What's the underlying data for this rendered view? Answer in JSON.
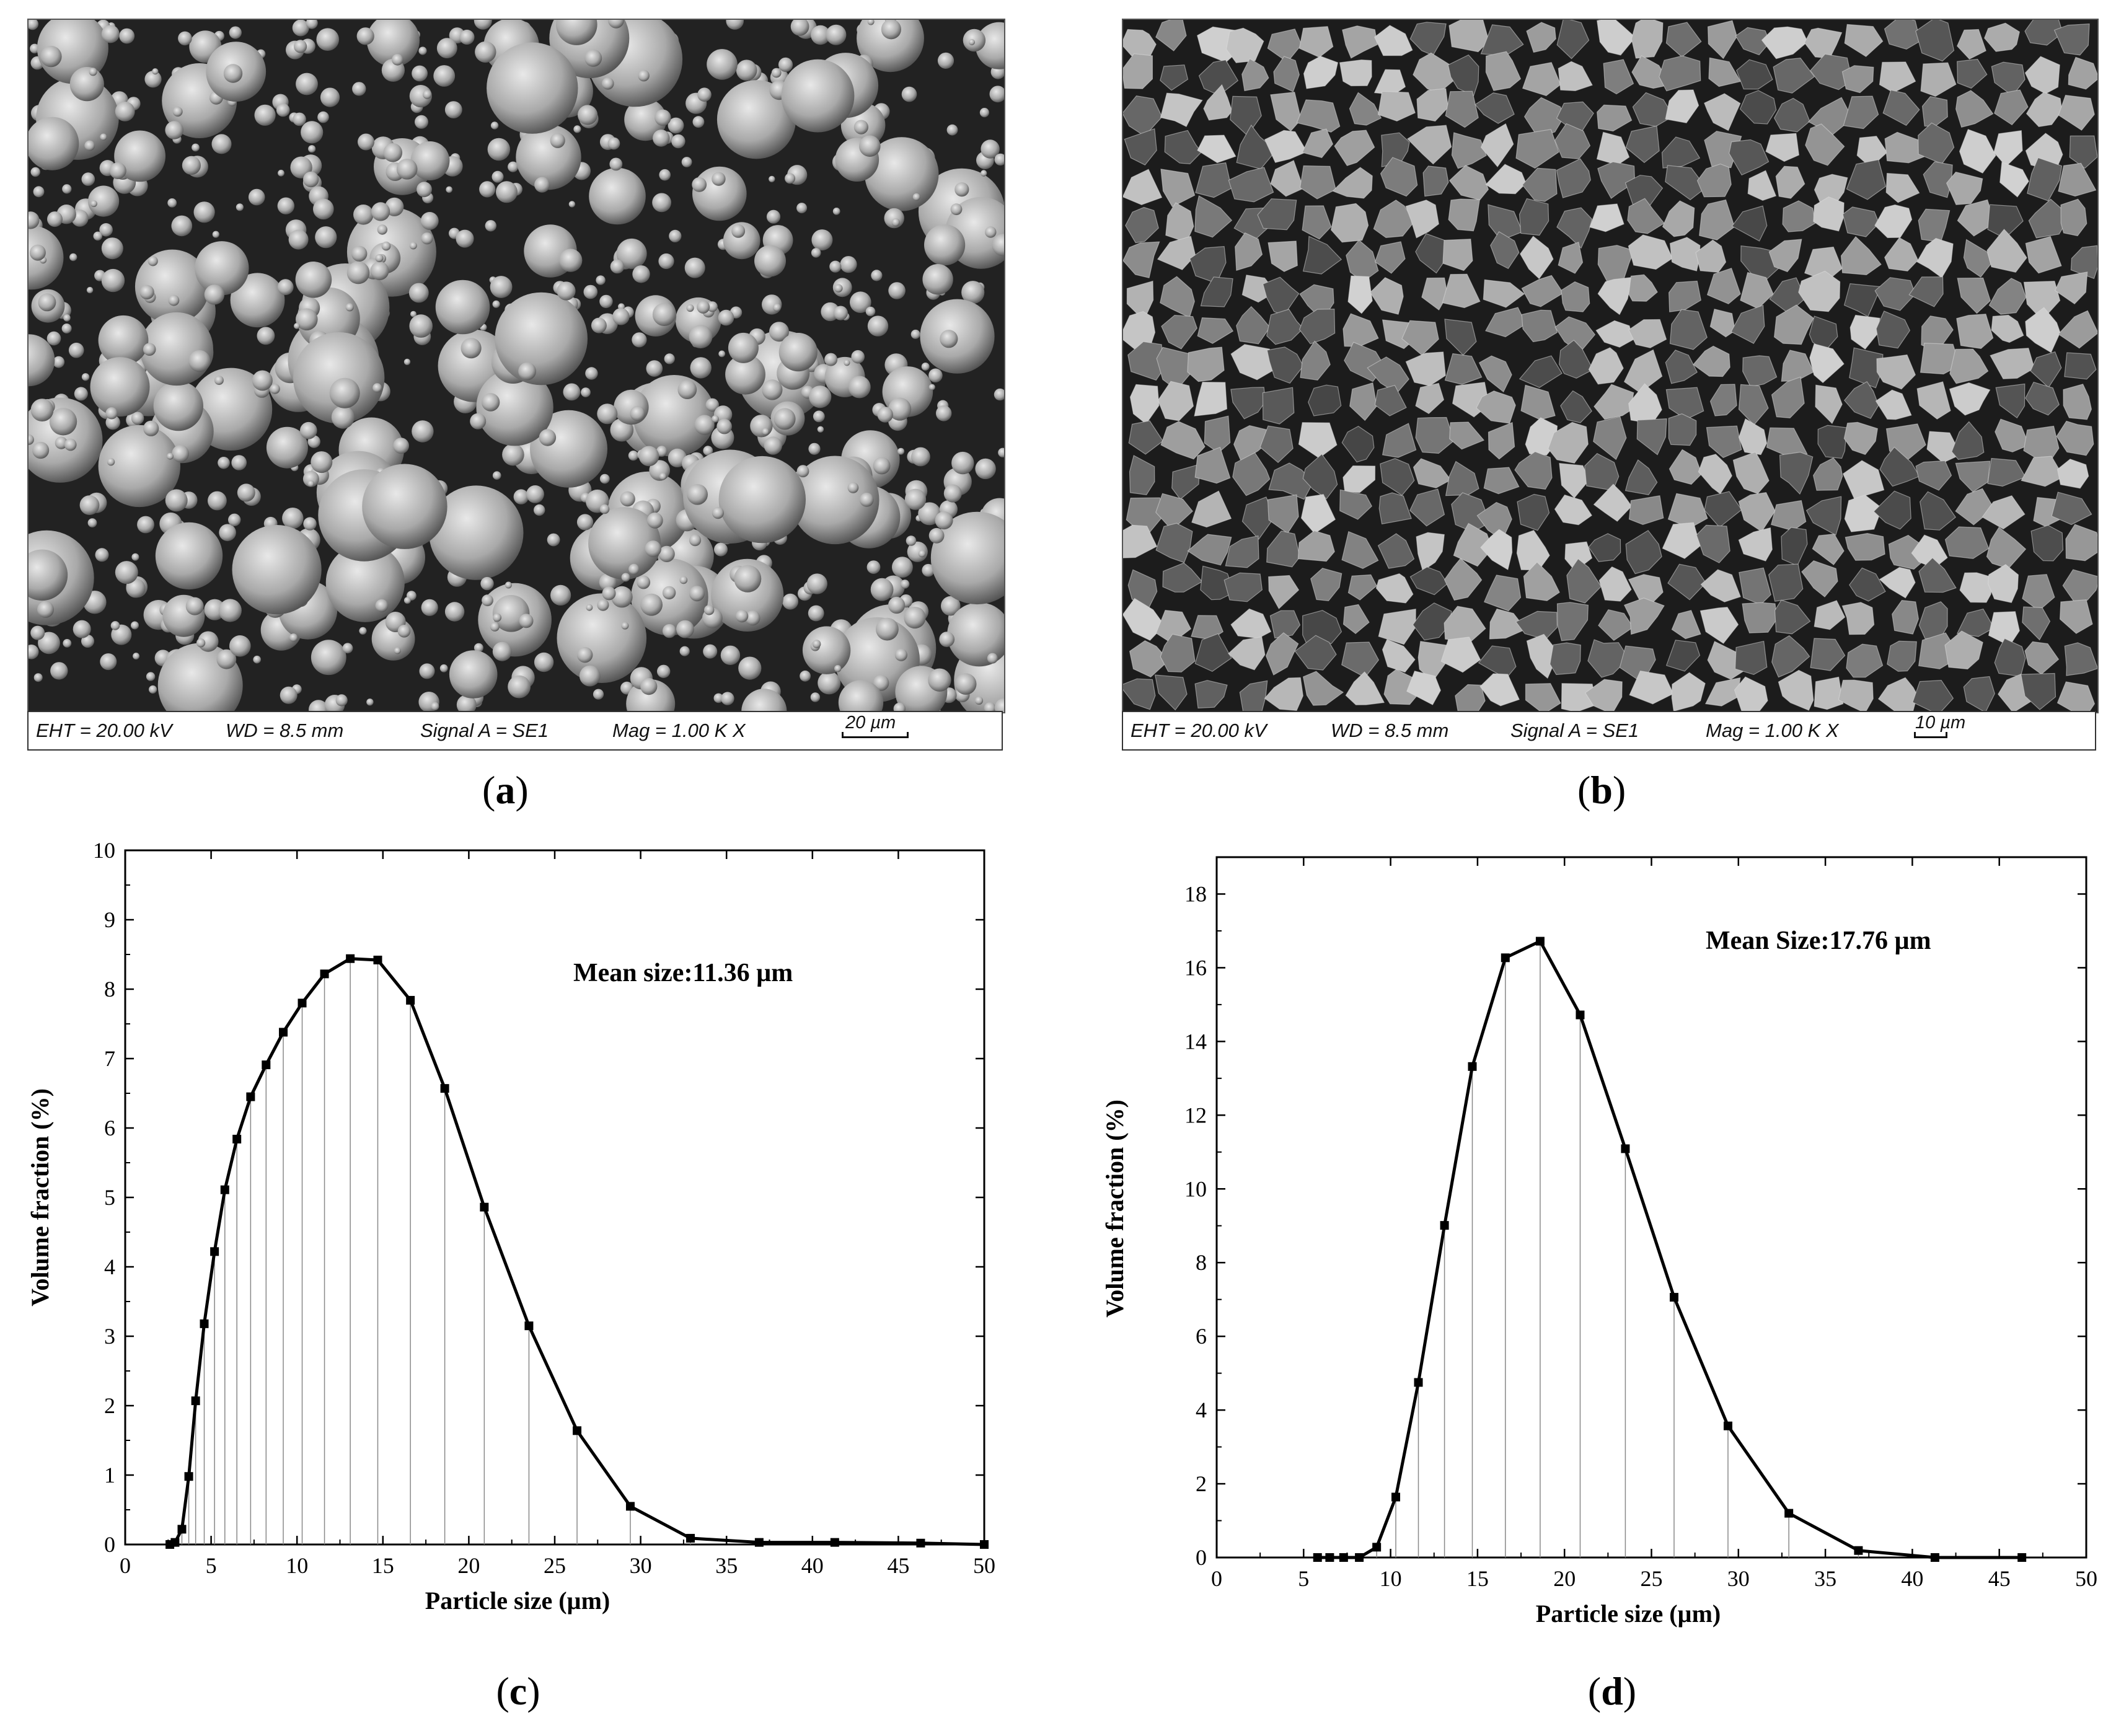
{
  "sem_panels": [
    {
      "label_letter": "a",
      "eht": "EHT = 20.00 kV",
      "wd": "WD =  8.5 mm",
      "signal": "Signal A = SE1",
      "mag": "Mag =    1.00 K X",
      "scale_bar": "20 µm",
      "particle_shape": "spherical"
    },
    {
      "label_letter": "b",
      "eht": "EHT = 20.00 kV",
      "wd": "WD =  8.5 mm",
      "signal": "Signal A = SE1",
      "mag": "Mag =    1.00 K X",
      "scale_bar": "10 µm",
      "particle_shape": "angular"
    }
  ],
  "chart_data": [
    {
      "type": "line",
      "panel_letter": "c",
      "xlabel": "Particle size (µm)",
      "ylabel": "Volume fraction (%)",
      "annotation": "Mean size:11.36 µm",
      "xlim": [
        0,
        50
      ],
      "ylim": [
        0,
        10
      ],
      "xticks": [
        0,
        5,
        10,
        15,
        20,
        25,
        30,
        35,
        40,
        45,
        50
      ],
      "yticks": [
        0,
        1,
        2,
        3,
        4,
        5,
        6,
        7,
        8,
        9,
        10
      ],
      "drop_lines": true,
      "marker": "square",
      "x": [
        2.6,
        2.9,
        3.3,
        3.7,
        4.1,
        4.6,
        5.2,
        5.8,
        6.5,
        7.3,
        8.2,
        9.2,
        10.3,
        11.6,
        13.1,
        14.7,
        16.6,
        18.6,
        20.9,
        23.5,
        26.3,
        29.4,
        32.9,
        36.9,
        41.3,
        46.3,
        50.0
      ],
      "values": [
        0.0,
        0.03,
        0.22,
        0.98,
        2.07,
        3.18,
        4.22,
        5.11,
        5.84,
        6.45,
        6.91,
        7.38,
        7.8,
        8.22,
        8.44,
        8.42,
        7.84,
        6.57,
        4.86,
        3.15,
        1.64,
        0.55,
        0.09,
        0.03,
        0.03,
        0.02,
        0.0
      ]
    },
    {
      "type": "line",
      "panel_letter": "d",
      "xlabel": "Particle size (µm)",
      "ylabel": "Volume fraction (%)",
      "annotation": "Mean Size:17.76 µm",
      "xlim": [
        0,
        50
      ],
      "ylim": [
        0,
        19
      ],
      "xticks": [
        0,
        5,
        10,
        15,
        20,
        25,
        30,
        35,
        40,
        45,
        50
      ],
      "yticks": [
        0,
        2,
        4,
        6,
        8,
        10,
        12,
        14,
        16,
        18
      ],
      "drop_lines": true,
      "marker": "square",
      "x": [
        5.8,
        6.5,
        7.3,
        8.2,
        9.2,
        10.3,
        11.6,
        13.1,
        14.7,
        16.6,
        18.6,
        20.9,
        23.5,
        26.3,
        29.4,
        32.9,
        36.9,
        41.3,
        46.3
      ],
      "values": [
        0.0,
        0.0,
        0.0,
        0.0,
        0.28,
        1.64,
        4.75,
        9.01,
        13.32,
        16.27,
        16.72,
        14.72,
        11.09,
        7.06,
        3.57,
        1.2,
        0.19,
        0.0,
        0.0
      ]
    }
  ]
}
